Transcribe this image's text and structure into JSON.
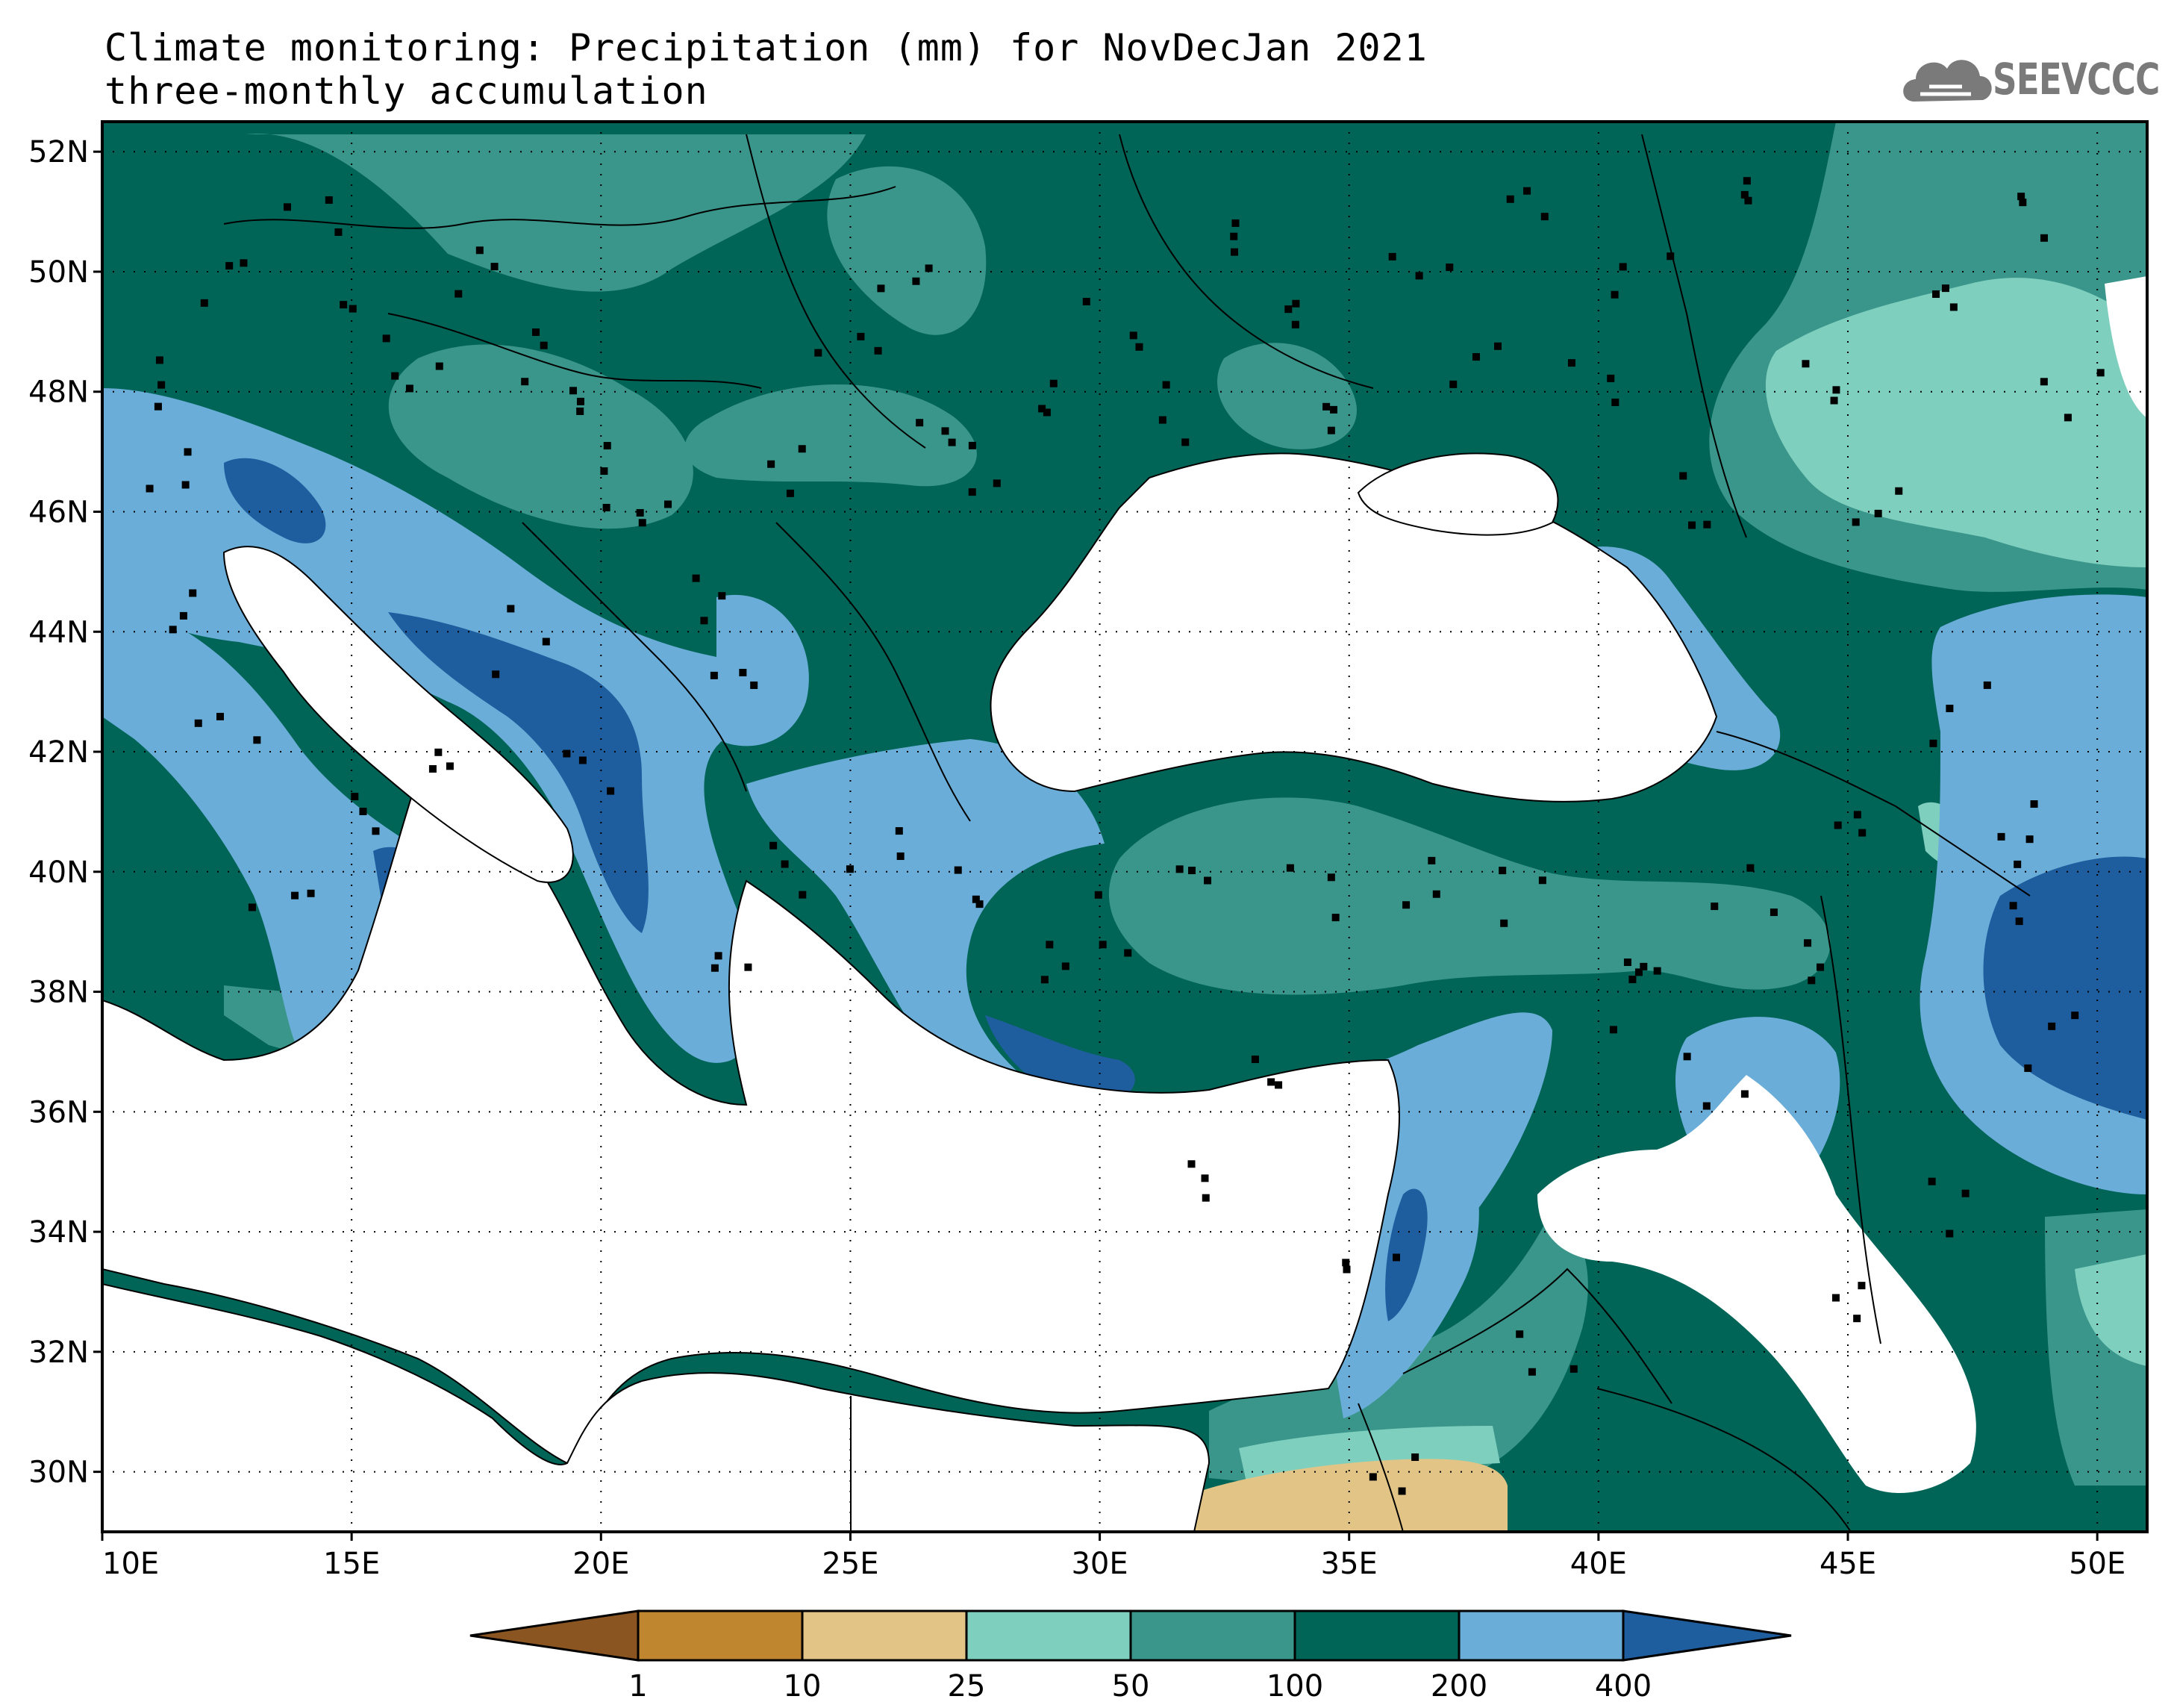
{
  "title": {
    "line1": "Climate monitoring: Precipitation (mm) for NovDecJan 2021",
    "line2": "three-monthly accumulation"
  },
  "logo": {
    "text": "SEEVCCC",
    "icon": "cloud-icon"
  },
  "map": {
    "lon_range": [
      10,
      51
    ],
    "lat_range": [
      29,
      52.5
    ],
    "lon_ticks": [
      "10E",
      "15E",
      "20E",
      "25E",
      "30E",
      "35E",
      "40E",
      "45E",
      "50E"
    ],
    "lat_ticks": [
      "30N",
      "32N",
      "34N",
      "36N",
      "38N",
      "40N",
      "42N",
      "44N",
      "46N",
      "48N",
      "50N",
      "52N"
    ],
    "gridlines": "dotted"
  },
  "legend": {
    "boundaries": [
      "1",
      "10",
      "25",
      "50",
      "100",
      "200",
      "400"
    ],
    "colors": [
      "#8a5520",
      "#c0852f",
      "#e2c586",
      "#7fcfbf",
      "#3a968a",
      "#006456",
      "#6aadd8",
      "#1f5e9e"
    ]
  }
}
